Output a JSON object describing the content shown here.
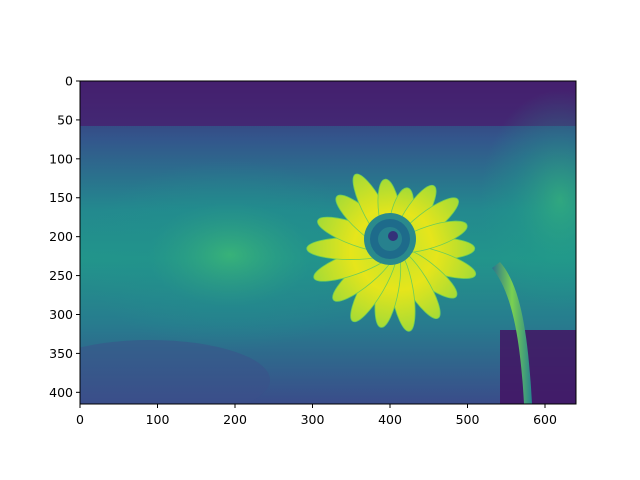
{
  "chart_data": {
    "type": "heatmap",
    "title": "",
    "xlabel": "",
    "ylabel": "",
    "colormap": "viridis",
    "image_extent": {
      "x": [
        0,
        640
      ],
      "y": [
        0,
        415
      ]
    },
    "xlim": [
      0,
      640
    ],
    "ylim": [
      415,
      0
    ],
    "y_axis_inverted": true,
    "grid": false,
    "x_ticks": [
      0,
      100,
      200,
      300,
      400,
      500,
      600
    ],
    "y_ticks": [
      0,
      50,
      100,
      150,
      200,
      250,
      300,
      350,
      400
    ],
    "x_tick_labels": [
      "0",
      "100",
      "200",
      "300",
      "400",
      "500",
      "600"
    ],
    "y_tick_labels": [
      "0",
      "50",
      "100",
      "150",
      "200",
      "250",
      "300",
      "350",
      "400"
    ],
    "colors": {
      "viridis_dark": "#440154",
      "viridis_purple": "#46327e",
      "viridis_blue": "#365c8d",
      "viridis_teal": "#277f8e",
      "viridis_green": "#1fa187",
      "viridis_lightgreen": "#4ac16d",
      "viridis_yellowgreen": "#a0da39",
      "viridis_yellow": "#fde725"
    },
    "subject": {
      "flower_center": [
        410,
        205
      ],
      "stem_x": [
        530,
        555
      ]
    }
  }
}
